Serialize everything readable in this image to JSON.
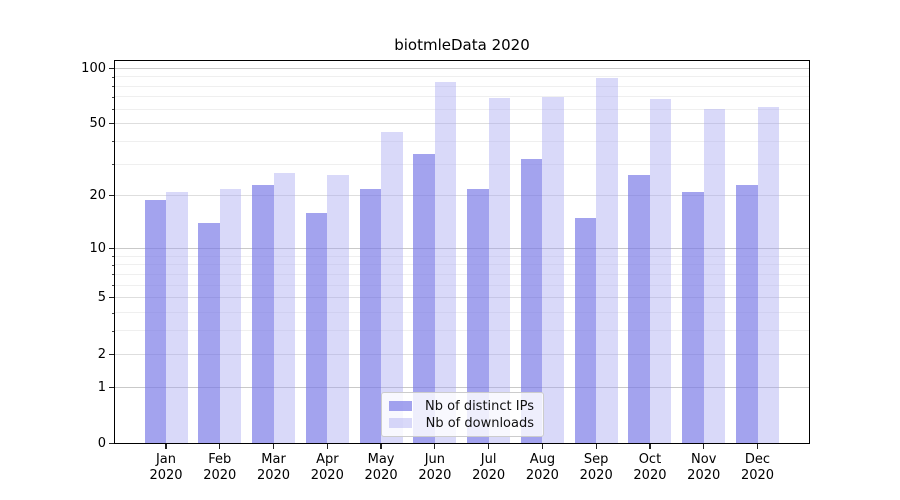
{
  "chart_data": {
    "type": "bar",
    "title": "biotmleData 2020",
    "categories": [
      "Jan 2020",
      "Feb 2020",
      "Mar 2020",
      "Apr 2020",
      "May 2020",
      "Jun 2020",
      "Jul 2020",
      "Aug 2020",
      "Sep 2020",
      "Oct 2020",
      "Nov 2020",
      "Dec 2020"
    ],
    "series": [
      {
        "name": "Nb of distinct IPs",
        "color": "rgba(120,120,230,0.68)",
        "values": [
          19,
          14,
          23,
          16,
          22,
          34,
          22,
          32,
          15,
          26,
          21,
          23
        ]
      },
      {
        "name": "Nb of downloads",
        "color": "rgba(165,165,240,0.42)",
        "values": [
          21,
          22,
          27,
          26,
          45,
          84,
          69,
          70,
          89,
          68,
          60,
          62
        ]
      }
    ],
    "y_scale": "log1p",
    "ylim": [
      0,
      110
    ],
    "y_ticks": [
      0,
      1,
      2,
      5,
      10,
      20,
      50,
      100
    ],
    "y_minor_ticks": [
      3,
      4,
      6,
      7,
      8,
      9,
      30,
      40,
      60,
      70,
      80,
      90
    ],
    "grid": true,
    "legend_position": "lower center"
  }
}
